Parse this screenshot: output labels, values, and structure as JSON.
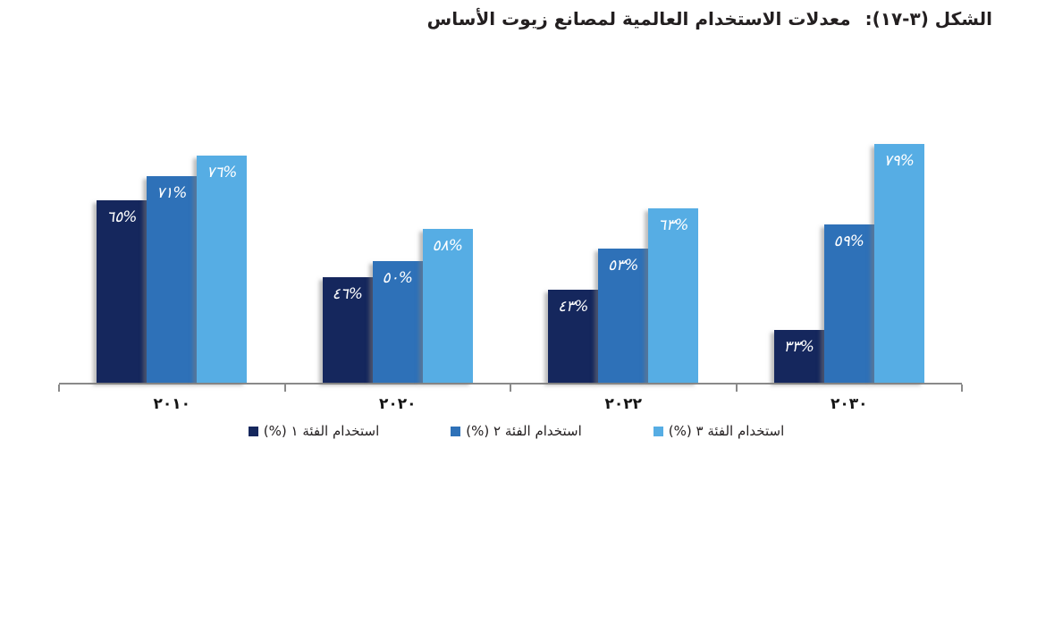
{
  "page": {
    "background": "#ffffff"
  },
  "title": {
    "figure_label": "الشكل (٣-١٧):",
    "text": "معدلات الاستخدام العالمية لمصانع زيوت الأساس",
    "color": "#231f20"
  },
  "chart_data": {
    "type": "bar",
    "title": "الشكل (٣-١٧): معدلات الاستخدام العالمية لمصانع زيوت الأساس",
    "categories": [
      "٢٠١٠",
      "٢٠٢٠",
      "٢٠٢٢",
      "٢٠٣٠"
    ],
    "categories_western": [
      2010,
      2020,
      2022,
      2030
    ],
    "series": [
      {
        "name": "استخدام الفئة ١ (%)",
        "color": "#15275d",
        "values": [
          65,
          46,
          43,
          33
        ],
        "value_labels": [
          "٦٥%",
          "٤٦%",
          "٤٣%",
          "٣٣%"
        ]
      },
      {
        "name": "استخدام الفئة ٢ (%)",
        "color": "#2e71b8",
        "values": [
          71,
          50,
          53,
          59
        ],
        "value_labels": [
          "٧١%",
          "٥٠%",
          "٥٣%",
          "٥٩%"
        ]
      },
      {
        "name": "استخدام الفئة ٣ (%)",
        "color": "#56ade4",
        "values": [
          76,
          58,
          63,
          79
        ],
        "value_labels": [
          "٧٦%",
          "٥٨%",
          "٦٣%",
          "٧٩%"
        ]
      }
    ],
    "ylim": [
      20,
      80
    ],
    "xlabel": "",
    "ylabel": "",
    "y_axis_visible": false,
    "grid": false,
    "value_labels_shown": true,
    "legend_position": "bottom",
    "axis_color": "#8a8a8a"
  }
}
